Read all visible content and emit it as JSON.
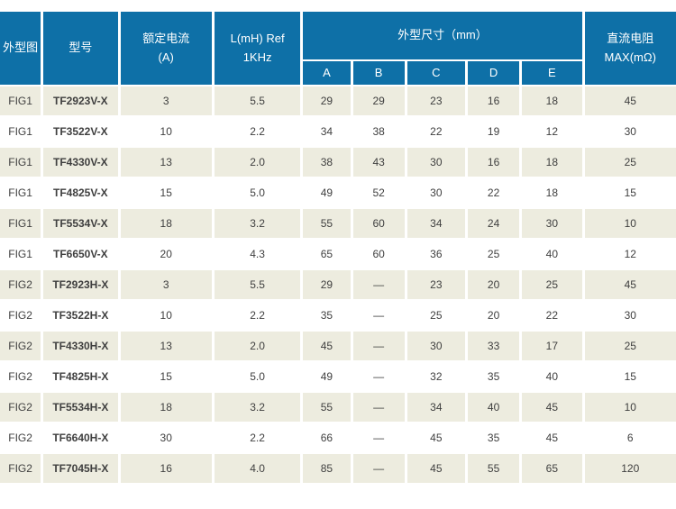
{
  "table": {
    "headers": {
      "outline_figure": "外型图",
      "model": "型号",
      "rated_current_line1": "额定电流",
      "rated_current_line2": "(A)",
      "inductance_line1": "L(mH) Ref",
      "inductance_line2": "1KHz",
      "dimensions": "外型尺寸（mm）",
      "dim_subcols": [
        "A",
        "B",
        "C",
        "D",
        "E"
      ],
      "dc_resistance_line1": "直流电阻",
      "dc_resistance_line2": "MAX(mΩ)"
    },
    "rows": [
      {
        "fig": "FIG1",
        "model": "TF2923V-X",
        "current": "3",
        "inductance": "5.5",
        "a": "29",
        "b": "29",
        "c": "23",
        "d": "16",
        "e": "18",
        "dcr": "45"
      },
      {
        "fig": "FIG1",
        "model": "TF3522V-X",
        "current": "10",
        "inductance": "2.2",
        "a": "34",
        "b": "38",
        "c": "22",
        "d": "19",
        "e": "12",
        "dcr": "30"
      },
      {
        "fig": "FIG1",
        "model": "TF4330V-X",
        "current": "13",
        "inductance": "2.0",
        "a": "38",
        "b": "43",
        "c": "30",
        "d": "16",
        "e": "18",
        "dcr": "25"
      },
      {
        "fig": "FIG1",
        "model": "TF4825V-X",
        "current": "15",
        "inductance": "5.0",
        "a": "49",
        "b": "52",
        "c": "30",
        "d": "22",
        "e": "18",
        "dcr": "15"
      },
      {
        "fig": "FIG1",
        "model": "TF5534V-X",
        "current": "18",
        "inductance": "3.2",
        "a": "55",
        "b": "60",
        "c": "34",
        "d": "24",
        "e": "30",
        "dcr": "10"
      },
      {
        "fig": "FIG1",
        "model": "TF6650V-X",
        "current": "20",
        "inductance": "4.3",
        "a": "65",
        "b": "60",
        "c": "36",
        "d": "25",
        "e": "40",
        "dcr": "12"
      },
      {
        "fig": "FIG2",
        "model": "TF2923H-X",
        "current": "3",
        "inductance": "5.5",
        "a": "29",
        "b": "—",
        "c": "23",
        "d": "20",
        "e": "25",
        "dcr": "45"
      },
      {
        "fig": "FIG2",
        "model": "TF3522H-X",
        "current": "10",
        "inductance": "2.2",
        "a": "35",
        "b": "—",
        "c": "25",
        "d": "20",
        "e": "22",
        "dcr": "30"
      },
      {
        "fig": "FIG2",
        "model": "TF4330H-X",
        "current": "13",
        "inductance": "2.0",
        "a": "45",
        "b": "—",
        "c": "30",
        "d": "33",
        "e": "17",
        "dcr": "25"
      },
      {
        "fig": "FIG2",
        "model": "TF4825H-X",
        "current": "15",
        "inductance": "5.0",
        "a": "49",
        "b": "—",
        "c": "32",
        "d": "35",
        "e": "40",
        "dcr": "15"
      },
      {
        "fig": "FIG2",
        "model": "TF5534H-X",
        "current": "18",
        "inductance": "3.2",
        "a": "55",
        "b": "—",
        "c": "34",
        "d": "40",
        "e": "45",
        "dcr": "10"
      },
      {
        "fig": "FIG2",
        "model": "TF6640H-X",
        "current": "30",
        "inductance": "2.2",
        "a": "66",
        "b": "—",
        "c": "45",
        "d": "35",
        "e": "45",
        "dcr": "6"
      },
      {
        "fig": "FIG2",
        "model": "TF7045H-X",
        "current": "16",
        "inductance": "4.0",
        "a": "85",
        "b": "—",
        "c": "45",
        "d": "55",
        "e": "65",
        "dcr": "120"
      }
    ]
  },
  "colors": {
    "header_blue": "#0e70a7",
    "row_stripe_beige": "#edecdf",
    "row_white": "#ffffff",
    "header_text": "#ffffff",
    "cell_text": "#3f3f3f",
    "model_text": "#141414"
  }
}
